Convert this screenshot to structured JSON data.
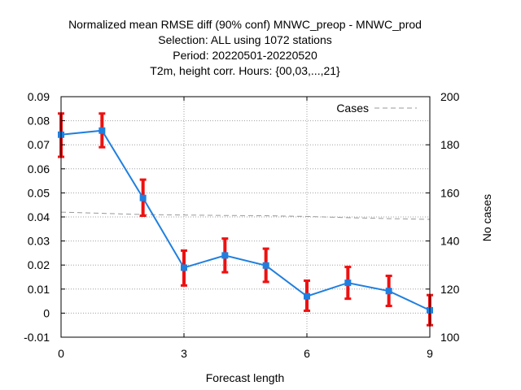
{
  "chart_data": {
    "type": "line",
    "title": [
      "Normalized mean RMSE diff (90% conf) MNWC_preop - MNWC_prod",
      "Selection: ALL using  1072 stations",
      "Period: 20220501-20220520",
      "T2m, height corr.   Hours: {00,03,...,21}"
    ],
    "xlabel": "Forecast length",
    "ylabel": "",
    "y2label": "No cases",
    "xlim": [
      0,
      9
    ],
    "ylim": [
      -0.01,
      0.09
    ],
    "y2lim": [
      100,
      200
    ],
    "xticks": [
      0,
      3,
      6,
      9
    ],
    "yticks": [
      -0.01,
      0,
      0.01,
      0.02,
      0.03,
      0.04,
      0.05,
      0.06,
      0.07,
      0.08,
      0.09
    ],
    "ytick_labels": [
      "-0.01",
      "0",
      "0.01",
      "0.02",
      "0.03",
      "0.04",
      "0.05",
      "0.06",
      "0.07",
      "0.08",
      "0.09"
    ],
    "y2ticks": [
      100,
      120,
      140,
      160,
      180,
      200
    ],
    "grid": true,
    "series": [
      {
        "axis": "left",
        "x": [
          0,
          1,
          2,
          3,
          4,
          5,
          6,
          7,
          8,
          9
        ],
        "y": [
          0.0742,
          0.0759,
          0.0479,
          0.0189,
          0.024,
          0.0198,
          0.007,
          0.0126,
          0.0092,
          0.0012
        ],
        "ci_low": [
          0.065,
          0.069,
          0.0405,
          0.0115,
          0.017,
          0.013,
          0.001,
          0.006,
          0.003,
          -0.005
        ],
        "ci_high": [
          0.083,
          0.083,
          0.0555,
          0.026,
          0.031,
          0.0268,
          0.0135,
          0.0192,
          0.0155,
          0.0075
        ],
        "color": "#1f7fdf",
        "errorbar_color": "#ee1111"
      },
      {
        "name": "Cases",
        "axis": "right",
        "style": "dashed",
        "color": "#999999",
        "x": [
          0,
          1,
          2,
          3,
          4,
          5,
          6,
          7,
          8,
          9
        ],
        "y": [
          152,
          151.5,
          151,
          150.8,
          150.6,
          150.5,
          150.2,
          149.7,
          149.3,
          149
        ]
      }
    ],
    "legend": {
      "position": "top-right"
    }
  }
}
